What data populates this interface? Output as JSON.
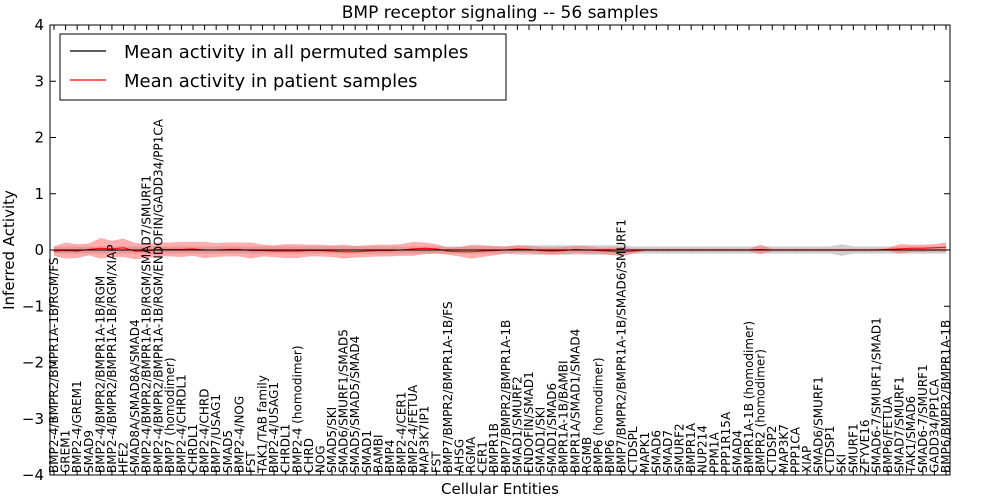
{
  "chart_data": {
    "type": "line",
    "title": "BMP receptor signaling -- 56 samples",
    "xlabel": "Cellular Entities",
    "ylabel": "Inferred Activity",
    "ylim": [
      -4,
      4
    ],
    "yticks": [
      -4,
      -3,
      -2,
      -1,
      0,
      1,
      2,
      3,
      4
    ],
    "legend_position": "top-left",
    "colors": {
      "permuted": "#000000",
      "patient": "#ff0000",
      "patient_band": "#ff6b6b",
      "permuted_band": "#b0b0b0"
    },
    "categories": [
      "BMP2-4/BMPR2/BMPR1A-1B/RGM/FS",
      "GREM1",
      "BMP2-4/GREM1",
      "SMAD9",
      "BMP2-4/BMPR2/BMPR1A-1B/RGM",
      "BMP2-4/BMPR2/BMPR1A-1B/RGM/XIAP",
      "HFE2",
      "SMAD8A/SMAD8A/SMAD4",
      "BMP2-4/BMPR2/BMPR1A-1B/RGM/SMAD7/SMURF1",
      "BMP2-4/BMPR2/BMPR1A-1B/RGM/ENDOFIN/GADD34/PP1CA",
      "BMP7 (homodimer)",
      "BMP2-4/CHRDL1",
      "CHRDL1",
      "BMP2-4/CHRD",
      "BMP7/USAG1",
      "SMAD5",
      "BMP2-4/NOG",
      "FST",
      "TAK1/TAB family",
      "BMP2-4/USAG1",
      "CHRDL1",
      "BMP2-4 (homodimer)",
      "CHRD",
      "NOG",
      "SMAD5/SKI",
      "SMAD6/SMURF1/SMAD5",
      "SMAD5/SMAD5/SMAD4",
      "SMAD1",
      "BAMBI",
      "BMP4",
      "BMP2-4/CER1",
      "BMP2-4/FETUA",
      "MAP3K7IP1",
      "FST",
      "BMP7/BMPR2/BMPR1A-1B/FS",
      "AHSG",
      "RGMA",
      "CER1",
      "BMPR1B",
      "BMP7/BMPR2/BMPR1A-1B",
      "SMAD1/SMURF2",
      "ENDOFIN/SMAD1",
      "SMAD1/SKI",
      "SMAD1/SMAD6",
      "BMPR1A-1B/BAMBI",
      "BMPR1A/SMAD1/SMAD4",
      "RGMB",
      "BMP6 (homodimer)",
      "BMP6",
      "BMP7/BMPR2/BMPR1A-1B/SMAD6/SMURF1",
      "CTDSPL",
      "MAPK1",
      "SMAD6",
      "SMAD7",
      "SMURF2",
      "BMPR1A",
      "NUP214",
      "PPM1A",
      "PPP1R15A",
      "SMAD4",
      "BMPR1A-1B (homodimer)",
      "BMPR2 (homodimer)",
      "CTDSP2",
      "MAP3K7",
      "PPP1CA",
      "XIAP",
      "SMAD6/SMURF1",
      "CTDSP1",
      "SKI",
      "SMURF1",
      "ZFYVE16",
      "SMAD6-7/SMURF1/SMAD1",
      "BMP6/FETUA",
      "SMAD7/SMURF1",
      "TAK1/SMAD6",
      "SMAD6-7/SMURF1",
      "GADD34/PP1CA",
      "BMP6/BMPR2/BMPR1A-1B"
    ],
    "series": [
      {
        "name": "Mean activity in all permuted samples",
        "values": [
          0,
          0,
          0,
          0,
          0,
          0,
          0,
          0,
          0,
          0,
          0,
          0,
          0,
          0,
          0,
          0,
          0,
          0,
          0,
          0,
          0,
          0,
          0,
          0,
          0,
          0,
          0,
          0,
          0,
          0,
          0,
          0,
          0,
          0,
          0,
          0,
          0,
          0,
          0,
          0,
          0,
          0,
          0,
          0,
          0,
          0,
          0,
          0,
          0,
          0,
          0,
          0,
          0,
          0,
          0,
          0,
          0,
          0,
          0,
          0,
          0,
          0,
          0,
          0,
          0,
          0,
          0,
          0,
          0,
          0,
          0,
          0,
          0,
          0,
          0,
          0,
          0,
          0
        ]
      },
      {
        "name": "Mean activity in patient samples",
        "values": [
          -0.02,
          -0.01,
          -0.02,
          0.01,
          0.03,
          0.02,
          0.04,
          -0.02,
          -0.02,
          0.01,
          0.01,
          0.01,
          0.02,
          0.0,
          0.0,
          0.01,
          0.01,
          -0.01,
          -0.01,
          -0.02,
          -0.02,
          -0.02,
          -0.01,
          -0.01,
          -0.02,
          -0.03,
          -0.03,
          -0.02,
          -0.01,
          -0.01,
          0.0,
          0.02,
          0.03,
          0.02,
          -0.02,
          -0.03,
          -0.03,
          -0.02,
          -0.01,
          0.0,
          0.02,
          0.01,
          -0.01,
          -0.02,
          -0.01,
          0.01,
          0.0,
          -0.01,
          -0.02,
          -0.03,
          -0.02,
          0.0,
          0.0,
          0.0,
          0.0,
          0.0,
          0.0,
          0.0,
          0.0,
          0.0,
          0.0,
          0.01,
          0.0,
          0.0,
          0.0,
          0.0,
          0.0,
          0.0,
          0.0,
          0.0,
          0.0,
          0.0,
          0.01,
          0.02,
          0.03,
          0.03,
          0.04,
          0.05
        ]
      }
    ],
    "patient_band": [
      0.08,
      0.14,
      0.12,
      0.1,
      0.18,
      0.14,
      0.16,
      0.14,
      0.12,
      0.12,
      0.12,
      0.13,
      0.12,
      0.14,
      0.12,
      0.12,
      0.12,
      0.14,
      0.1,
      0.1,
      0.12,
      0.12,
      0.1,
      0.1,
      0.1,
      0.12,
      0.1,
      0.1,
      0.1,
      0.1,
      0.1,
      0.12,
      0.1,
      0.08,
      0.06,
      0.08,
      0.12,
      0.1,
      0.08,
      0.06,
      0.06,
      0.06,
      0.06,
      0.06,
      0.06,
      0.06,
      0.06,
      0.05,
      0.06,
      0.08,
      0.04,
      0.02,
      0.02,
      0.02,
      0.02,
      0.02,
      0.02,
      0.02,
      0.02,
      0.02,
      0.02,
      0.08,
      0.02,
      0.02,
      0.02,
      0.02,
      0.02,
      0.02,
      0.02,
      0.02,
      0.02,
      0.02,
      0.02,
      0.08,
      0.06,
      0.06,
      0.06,
      0.08
    ],
    "permuted_band": [
      0.05,
      0.06,
      0.06,
      0.06,
      0.06,
      0.06,
      0.06,
      0.06,
      0.06,
      0.06,
      0.06,
      0.06,
      0.06,
      0.06,
      0.06,
      0.06,
      0.06,
      0.06,
      0.06,
      0.06,
      0.06,
      0.06,
      0.06,
      0.06,
      0.06,
      0.06,
      0.06,
      0.06,
      0.06,
      0.06,
      0.06,
      0.06,
      0.06,
      0.06,
      0.06,
      0.06,
      0.06,
      0.06,
      0.06,
      0.06,
      0.08,
      0.08,
      0.08,
      0.08,
      0.08,
      0.08,
      0.08,
      0.08,
      0.08,
      0.08,
      0.06,
      0.06,
      0.06,
      0.06,
      0.06,
      0.06,
      0.06,
      0.06,
      0.06,
      0.06,
      0.06,
      0.06,
      0.06,
      0.06,
      0.06,
      0.06,
      0.06,
      0.06,
      0.1,
      0.06,
      0.06,
      0.06,
      0.06,
      0.06,
      0.06,
      0.06,
      0.06,
      0.06
    ]
  }
}
